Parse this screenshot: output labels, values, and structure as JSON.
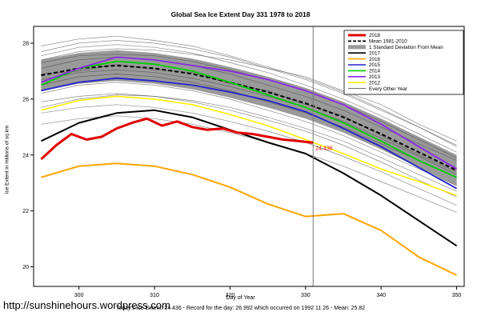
{
  "page": {
    "source_url": "http://sunshinehours.wordpress.com",
    "footer": "Today's Ice Extent: 24.436  - Record for the day: 26.992 which occurred on 1992 11 26  - Mean: 25.82"
  },
  "chart_data": {
    "type": "line",
    "title": "Global Sea Ice Extent Day 331 1978 to 2018",
    "xlabel": "Day of Year",
    "ylabel": "Ice Extent in millions of sq km",
    "xlim": [
      294,
      351
    ],
    "ylim": [
      19.3,
      28.6
    ],
    "xticks": [
      300,
      310,
      320,
      330,
      340,
      350
    ],
    "yticks": [
      20,
      22,
      24,
      26,
      28
    ],
    "grid": false,
    "legend_position": "top-right",
    "marker_day": 331,
    "marker_value": 24.436,
    "marker_label": "24.436",
    "band_color": "#9a9a9a",
    "other_year_color": "#404040",
    "x": [
      295,
      300,
      305,
      310,
      315,
      320,
      325,
      330,
      335,
      340,
      345,
      350
    ],
    "sd_upper": [
      27.4,
      27.65,
      27.75,
      27.65,
      27.45,
      27.15,
      26.8,
      26.4,
      25.9,
      25.3,
      24.65,
      24.0
    ],
    "sd_lower": [
      26.3,
      26.55,
      26.65,
      26.55,
      26.35,
      26.05,
      25.7,
      25.3,
      24.8,
      24.2,
      23.55,
      22.9
    ],
    "series": [
      {
        "name": "mean-1981-2010",
        "color": "#000000",
        "width": 2,
        "dash": "5,3",
        "values": [
          26.85,
          27.1,
          27.2,
          27.1,
          26.9,
          26.6,
          26.25,
          25.85,
          25.35,
          24.75,
          24.1,
          23.45
        ]
      },
      {
        "name": "2012",
        "color": "#ffee00",
        "width": 1.6,
        "values": [
          25.6,
          25.95,
          26.1,
          26.0,
          25.8,
          25.45,
          25.05,
          24.55,
          24.05,
          23.5,
          23.05,
          22.55
        ]
      },
      {
        "name": "2015",
        "color": "#2222cc",
        "width": 1.8,
        "values": [
          26.3,
          26.6,
          26.75,
          26.65,
          26.5,
          26.25,
          25.95,
          25.55,
          24.95,
          24.3,
          23.55,
          22.8
        ]
      },
      {
        "name": "2014",
        "color": "#00cc00",
        "width": 1.8,
        "values": [
          26.5,
          27.1,
          27.35,
          27.25,
          27.0,
          26.6,
          26.15,
          25.7,
          25.15,
          24.5,
          23.8,
          23.2
        ]
      },
      {
        "name": "2013",
        "color": "#8a2be2",
        "width": 1.8,
        "values": [
          26.6,
          27.1,
          27.5,
          27.4,
          27.2,
          27.0,
          26.7,
          26.3,
          25.8,
          25.1,
          24.3,
          23.5
        ]
      },
      {
        "name": "2016",
        "color": "#ffa500",
        "width": 2,
        "values": [
          23.2,
          23.6,
          23.7,
          23.6,
          23.3,
          22.85,
          22.25,
          21.8,
          21.9,
          21.3,
          20.35,
          19.7
        ]
      },
      {
        "name": "2017",
        "color": "#000000",
        "width": 2,
        "values": [
          24.5,
          25.15,
          25.5,
          25.6,
          25.35,
          24.9,
          24.45,
          24.05,
          23.35,
          22.55,
          21.65,
          20.75
        ]
      },
      {
        "name": "2018",
        "color": "#e00000",
        "width": 3,
        "x": [
          295,
          297,
          299,
          301,
          303,
          305,
          307,
          309,
          311,
          313,
          315,
          317,
          319,
          321,
          323,
          325,
          327,
          329,
          331
        ],
        "values": [
          23.85,
          24.35,
          24.75,
          24.55,
          24.65,
          24.95,
          25.15,
          25.3,
          25.05,
          25.2,
          25.0,
          24.9,
          24.95,
          24.8,
          24.75,
          24.65,
          24.55,
          24.5,
          24.44
        ]
      }
    ],
    "other_years": [
      [
        27.7,
        28.0,
        28.1,
        28.0,
        27.8,
        27.5,
        27.1,
        26.7,
        26.2,
        25.6,
        25.0,
        24.3
      ],
      [
        27.4,
        27.7,
        27.8,
        27.75,
        27.6,
        27.4,
        27.1,
        26.8,
        26.3,
        25.8,
        25.1,
        24.5
      ],
      [
        27.1,
        27.4,
        27.5,
        27.4,
        27.2,
        26.9,
        26.5,
        26.1,
        25.6,
        25.0,
        24.4,
        23.8
      ],
      [
        26.9,
        27.0,
        27.25,
        27.05,
        26.95,
        26.55,
        26.3,
        25.8,
        25.4,
        24.7,
        24.0,
        23.4
      ],
      [
        26.5,
        26.8,
        26.9,
        26.8,
        26.6,
        26.3,
        25.9,
        25.5,
        25.0,
        24.4,
        23.8,
        23.2
      ],
      [
        26.2,
        26.5,
        26.6,
        26.5,
        26.3,
        26.0,
        25.6,
        25.2,
        24.7,
        24.1,
        23.5,
        22.9
      ],
      [
        25.9,
        26.1,
        26.2,
        26.1,
        25.9,
        25.6,
        25.25,
        24.85,
        24.35,
        23.75,
        23.1,
        22.5
      ],
      [
        25.5,
        25.7,
        25.8,
        25.7,
        25.5,
        25.2,
        24.85,
        24.45,
        23.95,
        23.4,
        22.8,
        22.2
      ],
      [
        27.9,
        28.15,
        28.25,
        28.1,
        27.9,
        27.55,
        27.15,
        26.75,
        26.25,
        25.65,
        25.0,
        24.35
      ],
      [
        25.1,
        25.3,
        25.4,
        25.3,
        25.1,
        24.8,
        24.45,
        24.05,
        23.6,
        23.05,
        22.5,
        21.95
      ],
      [
        27.3,
        27.55,
        27.6,
        27.55,
        27.35,
        27.05,
        26.7,
        26.3,
        25.8,
        25.2,
        24.55,
        23.9
      ],
      [
        26.7,
        26.95,
        27.05,
        26.95,
        26.75,
        26.45,
        26.1,
        25.7,
        25.2,
        24.6,
        23.95,
        23.3
      ],
      [
        25.7,
        26.0,
        26.15,
        26.1,
        25.95,
        25.7,
        25.35,
        24.95,
        24.5,
        23.9,
        23.3,
        22.7
      ],
      [
        27.55,
        27.85,
        27.95,
        27.85,
        27.65,
        27.3,
        26.95,
        26.5,
        26.0,
        25.4,
        24.75,
        24.1
      ]
    ],
    "legend": [
      {
        "label": "2018",
        "color": "#e00000",
        "swatch": "thick"
      },
      {
        "label": "Mean 1981-2010",
        "color": "#000000",
        "swatch": "dashed"
      },
      {
        "label": "1 Standard Deviation From Mean",
        "color": "#9a9a9a",
        "swatch": "box"
      },
      {
        "label": "2017",
        "color": "#000000",
        "swatch": "line"
      },
      {
        "label": "2016",
        "color": "#ffa500",
        "swatch": "line"
      },
      {
        "label": "2015",
        "color": "#2222cc",
        "swatch": "line"
      },
      {
        "label": "2014",
        "color": "#00cc00",
        "swatch": "line"
      },
      {
        "label": "2013",
        "color": "#8a2be2",
        "swatch": "line"
      },
      {
        "label": "2012",
        "color": "#ffee00",
        "swatch": "line"
      },
      {
        "label": "Every Other Year",
        "color": "#404040",
        "swatch": "thin"
      }
    ]
  }
}
